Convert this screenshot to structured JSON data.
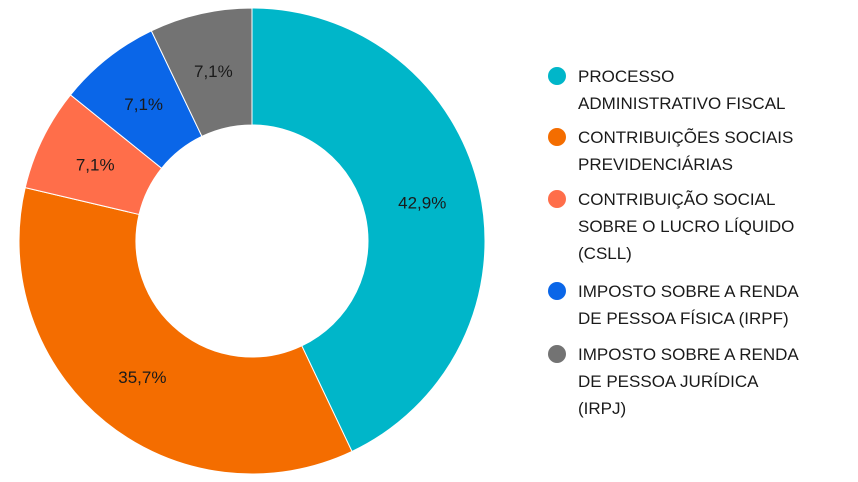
{
  "chart_data": {
    "type": "pie",
    "donut": true,
    "categories": [
      "PROCESSO ADMINISTRATIVO FISCAL",
      "CONTRIBUIÇÕES SOCIAIS PREVIDENCIÁRIAS",
      "CONTRIBUIÇÃO SOCIAL SOBRE O LUCRO LÍQUIDO (CSLL)",
      "IMPOSTO SOBRE A RENDA DE PESSOA FÍSICA (IRPF)",
      "IMPOSTO SOBRE A RENDA DE PESSOA JURÍDICA (IRPJ)"
    ],
    "legend_lines": [
      [
        "PROCESSO",
        "ADMINISTRATIVO FISCAL"
      ],
      [
        "CONTRIBUIÇÕES SOCIAIS",
        "PREVIDENCIÁRIAS"
      ],
      [
        "CONTRIBUIÇÃO SOCIAL",
        "SOBRE O LUCRO LÍQUIDO",
        "(CSLL)"
      ],
      [
        "IMPOSTO SOBRE A RENDA",
        "DE PESSOA FÍSICA (IRPF)"
      ],
      [
        "IMPOSTO SOBRE A RENDA",
        "DE PESSOA JURÍDICA",
        "(IRPJ)"
      ]
    ],
    "values": [
      42.9,
      35.7,
      7.1,
      7.1,
      7.1
    ],
    "labels": [
      "42,9%",
      "35,7%",
      "7,1%",
      "7,1%",
      "7,1%"
    ],
    "colors": [
      "#00b6c9",
      "#f46d00",
      "#ff6e4a",
      "#0a66e8",
      "#737373"
    ],
    "legend_position": "right"
  }
}
